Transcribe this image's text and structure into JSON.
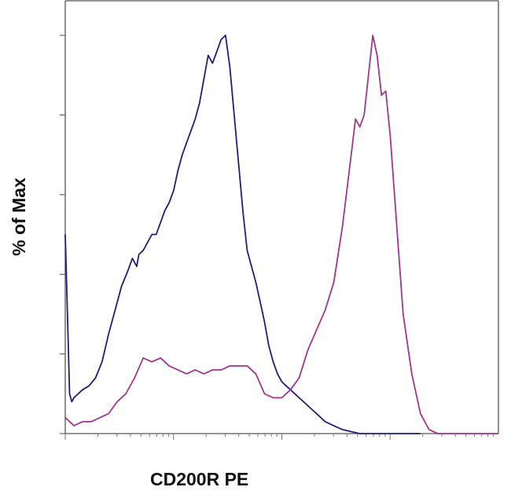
{
  "chart_data": {
    "type": "line",
    "title": "",
    "xlabel": "CD200R PE",
    "ylabel": "% of Max",
    "xlim": [
      0,
      100
    ],
    "ylim": [
      0,
      100
    ],
    "grid": false,
    "legend": "none",
    "series": [
      {
        "color": "#1f1f78",
        "x": [
          0.0,
          0.5,
          1.0,
          1.5,
          2.0,
          3.0,
          4.0,
          5.5,
          7.0,
          8.5,
          10.0,
          11.5,
          13.0,
          14.5,
          15.5,
          16.5,
          17.0,
          18.0,
          19.0,
          20.0,
          21.0,
          22.0,
          23.0,
          24.0,
          25.0,
          26.0,
          27.0,
          28.0,
          29.0,
          30.0,
          31.0,
          32.0,
          33.0,
          34.0,
          35.0,
          36.0,
          37.0,
          38.0,
          39.0,
          40.0,
          41.0,
          42.0,
          43.0,
          44.0,
          45.0,
          46.0,
          47.0,
          48.0,
          49.0,
          50.0,
          51.0,
          52.0,
          53.0,
          54.0,
          55.0,
          56.0,
          57.0,
          58.0,
          59.0,
          60.0,
          62.0,
          64.0,
          66.0,
          68.0,
          70.0,
          72.0,
          74.0,
          76.0,
          78.0,
          80.0,
          82.0
        ],
        "y": [
          50,
          30,
          10,
          8,
          9,
          10,
          11,
          12,
          14,
          18,
          25,
          31,
          37,
          41,
          44,
          42,
          45,
          46,
          48,
          50,
          50,
          53,
          56,
          58,
          61,
          66,
          70,
          73,
          76,
          79,
          83,
          89,
          95,
          93,
          96,
          99,
          100,
          92,
          80,
          68,
          56,
          46,
          42,
          38,
          33,
          28,
          22,
          18,
          15,
          13,
          12,
          11,
          10,
          9,
          8,
          7,
          6,
          5,
          4,
          3,
          2,
          1,
          0.5,
          0,
          0,
          0,
          0,
          0,
          0,
          0,
          0
        ]
      },
      {
        "color": "#a0368e",
        "x": [
          0.0,
          1.0,
          2.0,
          4.0,
          6.0,
          8.0,
          10.0,
          12.0,
          14.0,
          16.0,
          18.0,
          20.0,
          22.0,
          24.0,
          26.0,
          28.0,
          30.0,
          32.0,
          34.0,
          36.0,
          38.0,
          40.0,
          42.0,
          44.0,
          46.0,
          48.0,
          50.0,
          52.0,
          54.0,
          56.0,
          58.0,
          60.0,
          62.0,
          64.0,
          66.0,
          67.0,
          68.0,
          69.0,
          70.0,
          71.0,
          72.0,
          73.0,
          74.0,
          75.0,
          76.0,
          77.0,
          78.0,
          80.0,
          82.0,
          84.0,
          86.0,
          88.0,
          90.0,
          95.0,
          100.0
        ],
        "y": [
          4,
          3,
          2,
          3,
          3,
          4,
          5,
          8,
          10,
          14,
          19,
          18,
          19,
          17,
          16,
          15,
          16,
          15,
          16,
          16,
          17,
          17,
          17,
          15,
          10,
          9,
          9,
          11,
          14,
          21,
          26,
          31,
          38,
          52,
          70,
          79,
          77,
          80,
          90,
          100,
          95,
          85,
          86,
          75,
          60,
          45,
          30,
          15,
          5,
          1,
          0,
          0,
          0,
          0,
          0
        ]
      }
    ]
  }
}
